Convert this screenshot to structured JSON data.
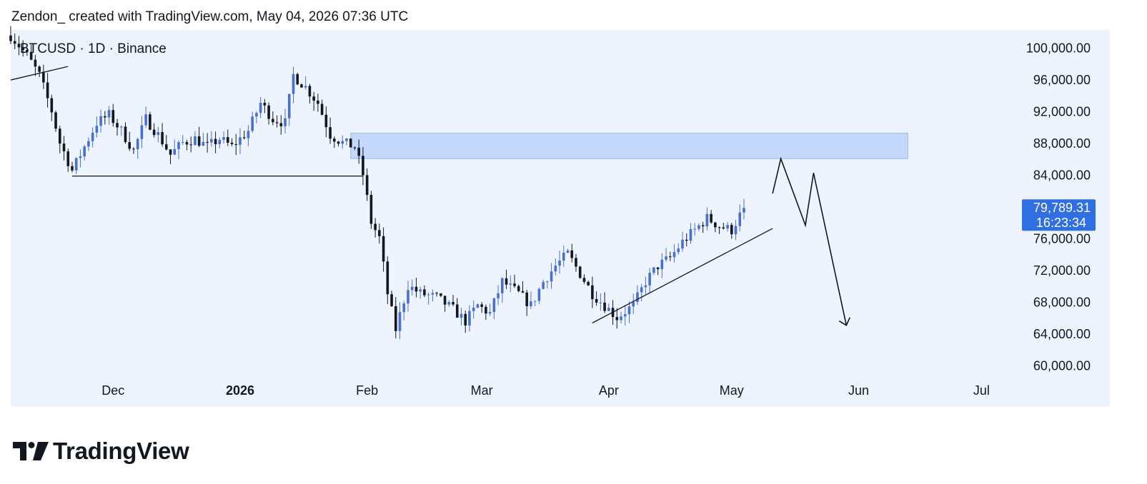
{
  "header": {
    "text": "Zendon_ created with TradingView.com, May 04, 2026 07:36 UTC"
  },
  "colors": {
    "up": "#4a6fd3",
    "down": "#131722",
    "bg": "#edf4fe",
    "zone": "#c3d8fb",
    "badge": "#2f6ee3"
  },
  "chart_data": {
    "type": "candlestick",
    "symbol_label": "BTCUSD · 1D · Binance",
    "x_range": [
      "2025-11-06",
      "2026-07-10"
    ],
    "y_range": [
      58500,
      102200
    ],
    "y_axis_side": "right",
    "y_ticks": [
      {
        "value": 100000,
        "label": "100,000.00"
      },
      {
        "value": 96000,
        "label": "96,000.00"
      },
      {
        "value": 92000,
        "label": "92,000.00"
      },
      {
        "value": 88000,
        "label": "88,000.00"
      },
      {
        "value": 84000,
        "label": "84,000.00"
      },
      {
        "value": 76000,
        "label": "76,000.00"
      },
      {
        "value": 72000,
        "label": "72,000.00"
      },
      {
        "value": 68000,
        "label": "68,000.00"
      },
      {
        "value": 64000,
        "label": "64,000.00"
      },
      {
        "value": 60000,
        "label": "60,000.00"
      }
    ],
    "x_ticks": [
      {
        "date": "2025-12-01",
        "label": "Dec",
        "bold": false
      },
      {
        "date": "2026-01-01",
        "label": "2026",
        "bold": true
      },
      {
        "date": "2026-02-01",
        "label": "Feb",
        "bold": false
      },
      {
        "date": "2026-03-01",
        "label": "Mar",
        "bold": false
      },
      {
        "date": "2026-04-01",
        "label": "Apr",
        "bold": false
      },
      {
        "date": "2026-05-01",
        "label": "May",
        "bold": false
      },
      {
        "date": "2026-06-01",
        "label": "Jun",
        "bold": false
      },
      {
        "date": "2026-07-01",
        "label": "Jul",
        "bold": false
      }
    ],
    "last_price": {
      "value": 79789.31,
      "label": "79,789.31",
      "countdown": "16:23:34"
    },
    "close_path": {
      "dates": [
        "2025-11-06",
        "2025-11-10",
        "2025-11-13",
        "2025-11-16",
        "2025-11-18",
        "2025-11-21",
        "2025-11-24",
        "2025-11-27",
        "2025-11-30",
        "2025-12-03",
        "2025-12-06",
        "2025-12-09",
        "2025-12-12",
        "2025-12-15",
        "2025-12-18",
        "2025-12-21",
        "2025-12-24",
        "2025-12-27",
        "2025-12-30",
        "2026-01-03",
        "2026-01-06",
        "2026-01-09",
        "2026-01-12",
        "2026-01-14",
        "2026-01-17",
        "2026-01-20",
        "2026-01-23",
        "2026-01-26",
        "2026-01-29",
        "2026-01-31",
        "2026-02-02",
        "2026-02-04",
        "2026-02-06",
        "2026-02-08",
        "2026-02-11",
        "2026-02-14",
        "2026-02-18",
        "2026-02-22",
        "2026-02-25",
        "2026-02-28",
        "2026-03-03",
        "2026-03-06",
        "2026-03-10",
        "2026-03-13",
        "2026-03-16",
        "2026-03-19",
        "2026-03-22",
        "2026-03-25",
        "2026-03-28",
        "2026-03-31",
        "2026-04-03",
        "2026-04-07",
        "2026-04-10",
        "2026-04-13",
        "2026-04-16",
        "2026-04-19",
        "2026-04-22",
        "2026-04-25",
        "2026-04-28",
        "2026-05-01",
        "2026-05-04"
      ],
      "values": [
        101500,
        99000,
        96500,
        92000,
        88000,
        84500,
        87500,
        90500,
        91500,
        89500,
        87000,
        91000,
        89000,
        86500,
        88000,
        88500,
        87500,
        88500,
        87500,
        89500,
        93000,
        91000,
        90500,
        96500,
        95000,
        93000,
        89000,
        88000,
        87500,
        84000,
        78000,
        76000,
        69000,
        64500,
        70000,
        69000,
        68500,
        67000,
        65500,
        67500,
        66500,
        70500,
        69000,
        67500,
        70500,
        72500,
        74000,
        71500,
        69000,
        67500,
        66000,
        67500,
        70500,
        72500,
        73500,
        75500,
        77000,
        78500,
        77500,
        77000,
        79789
      ]
    },
    "annotations": {
      "supply_zone": {
        "from": "2026-01-28",
        "to": "2026-06-13",
        "low": 86000,
        "high": 89200
      },
      "support_line": {
        "from": "2025-11-21",
        "to": "2026-01-31",
        "value": 83800
      },
      "trendline": {
        "from": "2026-03-28",
        "to": "2026-05-11",
        "from_value": 65300,
        "to_value": 77200
      },
      "projection": {
        "dates": [
          "2026-05-11",
          "2026-05-13",
          "2026-05-19",
          "2026-05-21",
          "2026-05-29",
          "2026-05-30"
        ],
        "values": [
          81600,
          86000,
          77600,
          84200,
          65000,
          64600
        ]
      },
      "prior_line": {
        "from": "2025-11-06",
        "to": "2025-11-20",
        "from_value": 95900,
        "to_value": 97600
      }
    }
  },
  "brand": {
    "name": "TradingView"
  }
}
